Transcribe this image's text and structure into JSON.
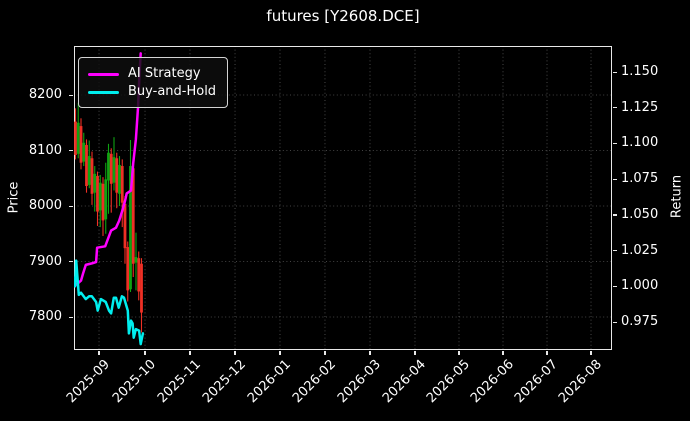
{
  "title": "futures [Y2608.DCE]",
  "axes": {
    "y_left": {
      "label": "Price",
      "ticks": [
        8200,
        8100,
        8000,
        7900,
        7800
      ]
    },
    "y_right": {
      "label": "Return",
      "ticks": [
        1.15,
        1.125,
        1.1,
        1.075,
        1.05,
        1.025,
        1.0,
        0.975
      ]
    },
    "x": {
      "tick_labels": [
        "2025-09",
        "2025-10",
        "2025-11",
        "2025-12",
        "2026-01",
        "2026-02",
        "2026-03",
        "2026-04",
        "2026-05",
        "2026-06",
        "2026-07",
        "2026-08"
      ]
    }
  },
  "legend": {
    "items": [
      {
        "label": "AI Strategy",
        "color": "#ff00ff"
      },
      {
        "label": "Buy-and-Hold",
        "color": "#00eeee"
      }
    ]
  },
  "colors": {
    "background": "#000000",
    "text": "#ffffff",
    "grid": "#ffffff",
    "candle_up": "#0fa312",
    "candle_down": "#ef3025",
    "ai_strategy": "#ff00ff",
    "buy_and_hold": "#00eeee"
  },
  "chart_data": {
    "type": [
      "candlestick",
      "line"
    ],
    "title": "futures [Y2608.DCE]",
    "xlabel": "",
    "x_tick_labels": [
      "2025-09",
      "2025-10",
      "2025-11",
      "2025-12",
      "2026-01",
      "2026-02",
      "2026-03",
      "2026-04",
      "2026-05",
      "2026-06",
      "2026-07",
      "2026-08"
    ],
    "x_range_note": "data occupies roughly late Aug 2025 to end of Sep 2025; axis extends empty to mid Aug 2026",
    "price_axis": {
      "label": "Price",
      "ticks": [
        8200,
        8100,
        8000,
        7900,
        7800
      ],
      "range": [
        7741,
        8288
      ]
    },
    "return_axis": {
      "label": "Return",
      "ticks": [
        1.15,
        1.125,
        1.1,
        1.075,
        1.05,
        1.025,
        1.0,
        0.975
      ],
      "range": [
        0.9547,
        1.1682
      ]
    },
    "grid": {
      "vertical": "month ticks",
      "horizontal": "price ticks",
      "style": "dotted"
    },
    "legend_position": "upper left",
    "candles": {
      "t_start": 0.0028,
      "t_step": 0.00511,
      "ohlc": [
        [
          8152,
          8176,
          8084,
          8092
        ],
        [
          8094,
          8186,
          8086,
          8150
        ],
        [
          8144,
          8158,
          8066,
          8078
        ],
        [
          8080,
          8132,
          8072,
          8114
        ],
        [
          8110,
          8120,
          8024,
          8036
        ],
        [
          8038,
          8118,
          8032,
          8090
        ],
        [
          8086,
          8098,
          8002,
          8022
        ],
        [
          8024,
          8072,
          7990,
          8058
        ],
        [
          8054,
          8062,
          7964,
          7990
        ],
        [
          7992,
          8056,
          7962,
          8042
        ],
        [
          8040,
          8052,
          7946,
          7974
        ],
        [
          7976,
          8078,
          7950,
          8048
        ],
        [
          8046,
          8112,
          7986,
          8096
        ],
        [
          8094,
          8104,
          7988,
          8040
        ],
        [
          8042,
          8124,
          8028,
          8088
        ],
        [
          8086,
          8096,
          7996,
          8024
        ],
        [
          8022,
          8090,
          8000,
          8074
        ],
        [
          8072,
          8084,
          7962,
          8006
        ],
        [
          8004,
          8018,
          7896,
          7924
        ],
        [
          7926,
          7936,
          7828,
          7848
        ],
        [
          7850,
          8119,
          7845,
          8072
        ],
        [
          8068,
          8076,
          7872,
          7896
        ],
        [
          7898,
          7952,
          7848,
          7908
        ],
        [
          7906,
          7918,
          7830,
          7846
        ],
        [
          7896,
          7906,
          7772,
          7808
        ]
      ]
    },
    "series": [
      {
        "name": "AI Strategy",
        "axis": "return",
        "color": "#ff00ff",
        "points": [
          [
            0.0,
            1.0
          ],
          [
            0.007,
            1.002
          ],
          [
            0.013,
            1.004
          ],
          [
            0.017,
            1.009
          ],
          [
            0.022,
            1.015
          ],
          [
            0.033,
            1.016
          ],
          [
            0.041,
            1.017
          ],
          [
            0.043,
            1.027
          ],
          [
            0.058,
            1.028
          ],
          [
            0.063,
            1.033
          ],
          [
            0.069,
            1.039
          ],
          [
            0.078,
            1.041
          ],
          [
            0.084,
            1.046
          ],
          [
            0.089,
            1.052
          ],
          [
            0.095,
            1.06
          ],
          [
            0.098,
            1.065
          ],
          [
            0.106,
            1.067
          ],
          [
            0.11,
            1.086
          ],
          [
            0.115,
            1.103
          ],
          [
            0.119,
            1.125
          ],
          [
            0.122,
            1.15
          ],
          [
            0.124,
            1.163
          ]
        ]
      },
      {
        "name": "Buy-and-Hold",
        "axis": "return",
        "color": "#00eeee",
        "points": [
          [
            0.0,
            1.006
          ],
          [
            0.002,
            1.0
          ],
          [
            0.004,
            1.018
          ],
          [
            0.009,
            0.994
          ],
          [
            0.013,
            0.9955
          ],
          [
            0.022,
            0.991
          ],
          [
            0.028,
            0.993
          ],
          [
            0.033,
            0.993
          ],
          [
            0.041,
            0.989
          ],
          [
            0.044,
            0.983
          ],
          [
            0.05,
            0.991
          ],
          [
            0.059,
            0.989
          ],
          [
            0.065,
            0.983
          ],
          [
            0.069,
            0.981
          ],
          [
            0.074,
            0.992
          ],
          [
            0.078,
            0.992
          ],
          [
            0.083,
            0.985
          ],
          [
            0.089,
            0.993
          ],
          [
            0.093,
            0.992
          ],
          [
            0.1,
            0.983
          ],
          [
            0.102,
            0.967
          ],
          [
            0.106,
            0.976
          ],
          [
            0.109,
            0.974
          ],
          [
            0.111,
            0.964
          ],
          [
            0.115,
            0.97
          ],
          [
            0.121,
            0.969
          ],
          [
            0.124,
            0.9595
          ],
          [
            0.128,
            0.967
          ]
        ]
      }
    ]
  }
}
